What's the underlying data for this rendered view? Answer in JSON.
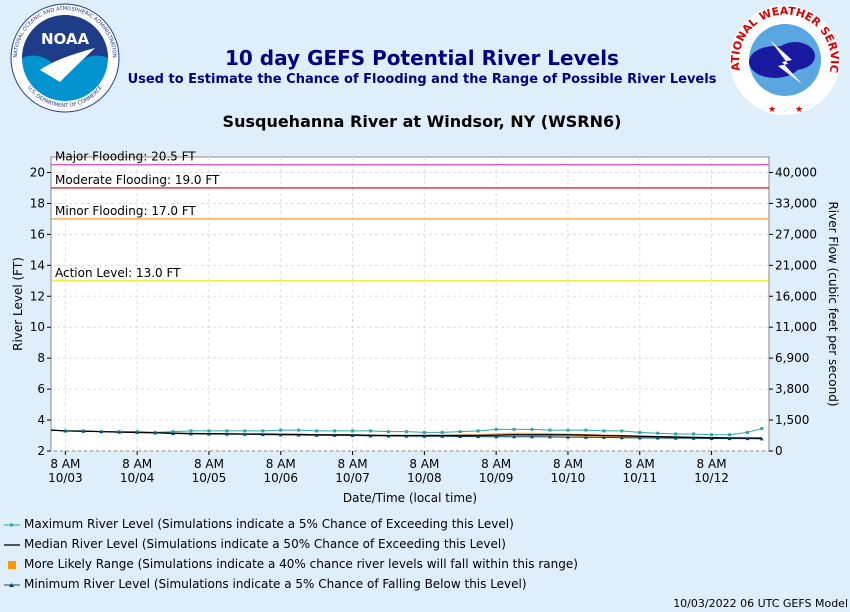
{
  "header": {
    "title": "10 day GEFS Potential River Levels",
    "subtitle": "Used to Estimate the Chance of Flooding and the Range of Possible River Levels",
    "location": "Susquehanna River at Windsor, NY (WSRN6)",
    "noaa_logo_text": "NOAA",
    "noaa_ring_text": "NATIONAL OCEANIC AND ATMOSPHERIC ADMINISTRATION",
    "noaa_ring_bottom": "U.S. DEPARTMENT OF COMMERCE",
    "nws_ring_text": "NATIONAL WEATHER SERVICE"
  },
  "footer": "10/03/2022 06 UTC GEFS Model",
  "colors": {
    "background": "#dfeefb",
    "title": "#000080",
    "major": "#cc44cc",
    "moderate": "#cc0000",
    "minor": "#ff9933",
    "action": "#e6e600",
    "max": "#2aa8a8",
    "median": "#000000",
    "range": "#ff9900",
    "min": "#00447a"
  },
  "legend": [
    {
      "key": "max",
      "label": "Maximum River Level (Simulations indicate a 5% Chance of Exceeding this Level)"
    },
    {
      "key": "median",
      "label": "Median River Level (Simulations indicate a 50% Chance of Exceeding this Level)"
    },
    {
      "key": "range",
      "label": "More Likely Range (Simulations indicate a 40% chance river levels will fall within this range)"
    },
    {
      "key": "min",
      "label": "Minimum River Level (Simulations indicate a 5% Chance of Falling Below this Level)"
    }
  ],
  "chart_data": {
    "type": "line",
    "xlabel": "Date/Time (local time)",
    "ylabel": "River Level (FT)",
    "y2label": "River Flow (cubic feet per second)",
    "ylim": [
      2,
      21
    ],
    "xlim_days": [
      -0.2,
      9.8
    ],
    "yticks": [
      2,
      4,
      6,
      8,
      10,
      12,
      14,
      16,
      18,
      20
    ],
    "y2ticks": [
      {
        "stage": 2,
        "label": "0"
      },
      {
        "stage": 4,
        "label": "1,500"
      },
      {
        "stage": 6,
        "label": "3,800"
      },
      {
        "stage": 8,
        "label": "6,900"
      },
      {
        "stage": 10,
        "label": "11,000"
      },
      {
        "stage": 12,
        "label": "16,000"
      },
      {
        "stage": 14,
        "label": "21,000"
      },
      {
        "stage": 16,
        "label": "27,000"
      },
      {
        "stage": 18,
        "label": "33,000"
      },
      {
        "stage": 20,
        "label": "40,000"
      }
    ],
    "xticks": [
      {
        "day": 0,
        "label1": "8 AM",
        "label2": "10/03"
      },
      {
        "day": 1,
        "label1": "8 AM",
        "label2": "10/04"
      },
      {
        "day": 2,
        "label1": "8 AM",
        "label2": "10/05"
      },
      {
        "day": 3,
        "label1": "8 AM",
        "label2": "10/06"
      },
      {
        "day": 4,
        "label1": "8 AM",
        "label2": "10/07"
      },
      {
        "day": 5,
        "label1": "8 AM",
        "label2": "10/08"
      },
      {
        "day": 6,
        "label1": "8 AM",
        "label2": "10/09"
      },
      {
        "day": 7,
        "label1": "8 AM",
        "label2": "10/10"
      },
      {
        "day": 8,
        "label1": "8 AM",
        "label2": "10/11"
      },
      {
        "day": 9,
        "label1": "8 AM",
        "label2": "10/12"
      }
    ],
    "thresholds": [
      {
        "key": "major",
        "label": "Major Flooding: 20.5 FT",
        "value": 20.5
      },
      {
        "key": "moderate",
        "label": "Moderate Flooding: 19.0 FT",
        "value": 19.0
      },
      {
        "key": "minor",
        "label": "Minor Flooding: 17.0 FT",
        "value": 17.0
      },
      {
        "key": "action",
        "label": "Action Level: 13.0 FT",
        "value": 13.0
      }
    ],
    "series_days": [
      -0.2,
      0.0,
      0.25,
      0.5,
      0.75,
      1.0,
      1.25,
      1.5,
      1.75,
      2.0,
      2.25,
      2.5,
      2.75,
      3.0,
      3.25,
      3.5,
      3.75,
      4.0,
      4.25,
      4.5,
      4.75,
      5.0,
      5.25,
      5.5,
      5.75,
      6.0,
      6.25,
      6.5,
      6.75,
      7.0,
      7.25,
      7.5,
      7.75,
      8.0,
      8.25,
      8.5,
      8.75,
      9.0,
      9.25,
      9.5,
      9.7
    ],
    "max": [
      3.35,
      3.3,
      3.3,
      3.25,
      3.25,
      3.25,
      3.2,
      3.25,
      3.3,
      3.3,
      3.3,
      3.3,
      3.3,
      3.35,
      3.35,
      3.3,
      3.3,
      3.3,
      3.3,
      3.25,
      3.25,
      3.2,
      3.2,
      3.25,
      3.3,
      3.4,
      3.4,
      3.4,
      3.35,
      3.35,
      3.35,
      3.3,
      3.3,
      3.2,
      3.15,
      3.1,
      3.1,
      3.05,
      3.05,
      3.2,
      3.45
    ],
    "median": [
      3.35,
      3.3,
      3.28,
      3.25,
      3.22,
      3.2,
      3.18,
      3.15,
      3.13,
      3.12,
      3.11,
      3.1,
      3.1,
      3.08,
      3.07,
      3.05,
      3.05,
      3.04,
      3.02,
      3.0,
      3.0,
      3.0,
      3.0,
      3.0,
      3.0,
      3.02,
      3.05,
      3.05,
      3.05,
      3.05,
      3.03,
      3.0,
      2.98,
      2.95,
      2.93,
      2.9,
      2.88,
      2.86,
      2.85,
      2.84,
      2.84
    ],
    "range_hi": [
      3.35,
      3.3,
      3.28,
      3.25,
      3.22,
      3.2,
      3.18,
      3.16,
      3.14,
      3.13,
      3.12,
      3.11,
      3.11,
      3.1,
      3.09,
      3.08,
      3.07,
      3.06,
      3.05,
      3.04,
      3.04,
      3.05,
      3.06,
      3.08,
      3.1,
      3.15,
      3.18,
      3.18,
      3.16,
      3.12,
      3.1,
      3.07,
      3.04,
      3.0,
      2.97,
      2.95,
      2.92,
      2.9,
      2.88,
      2.86,
      2.85
    ],
    "range_lo": [
      3.35,
      3.3,
      3.28,
      3.25,
      3.22,
      3.2,
      3.17,
      3.14,
      3.12,
      3.11,
      3.1,
      3.09,
      3.08,
      3.06,
      3.05,
      3.03,
      3.02,
      3.0,
      2.99,
      2.98,
      2.97,
      2.96,
      2.96,
      2.96,
      2.96,
      2.97,
      2.98,
      2.97,
      2.96,
      2.95,
      2.93,
      2.91,
      2.89,
      2.88,
      2.86,
      2.85,
      2.84,
      2.83,
      2.82,
      2.82,
      2.81
    ],
    "min": [
      3.35,
      3.3,
      3.28,
      3.25,
      3.22,
      3.2,
      3.17,
      3.13,
      3.11,
      3.1,
      3.09,
      3.08,
      3.06,
      3.04,
      3.03,
      3.02,
      3.01,
      3.0,
      2.98,
      2.97,
      2.96,
      2.95,
      2.95,
      2.94,
      2.93,
      2.92,
      2.92,
      2.92,
      2.91,
      2.9,
      2.89,
      2.88,
      2.86,
      2.85,
      2.84,
      2.83,
      2.82,
      2.81,
      2.8,
      2.8,
      2.78
    ]
  }
}
